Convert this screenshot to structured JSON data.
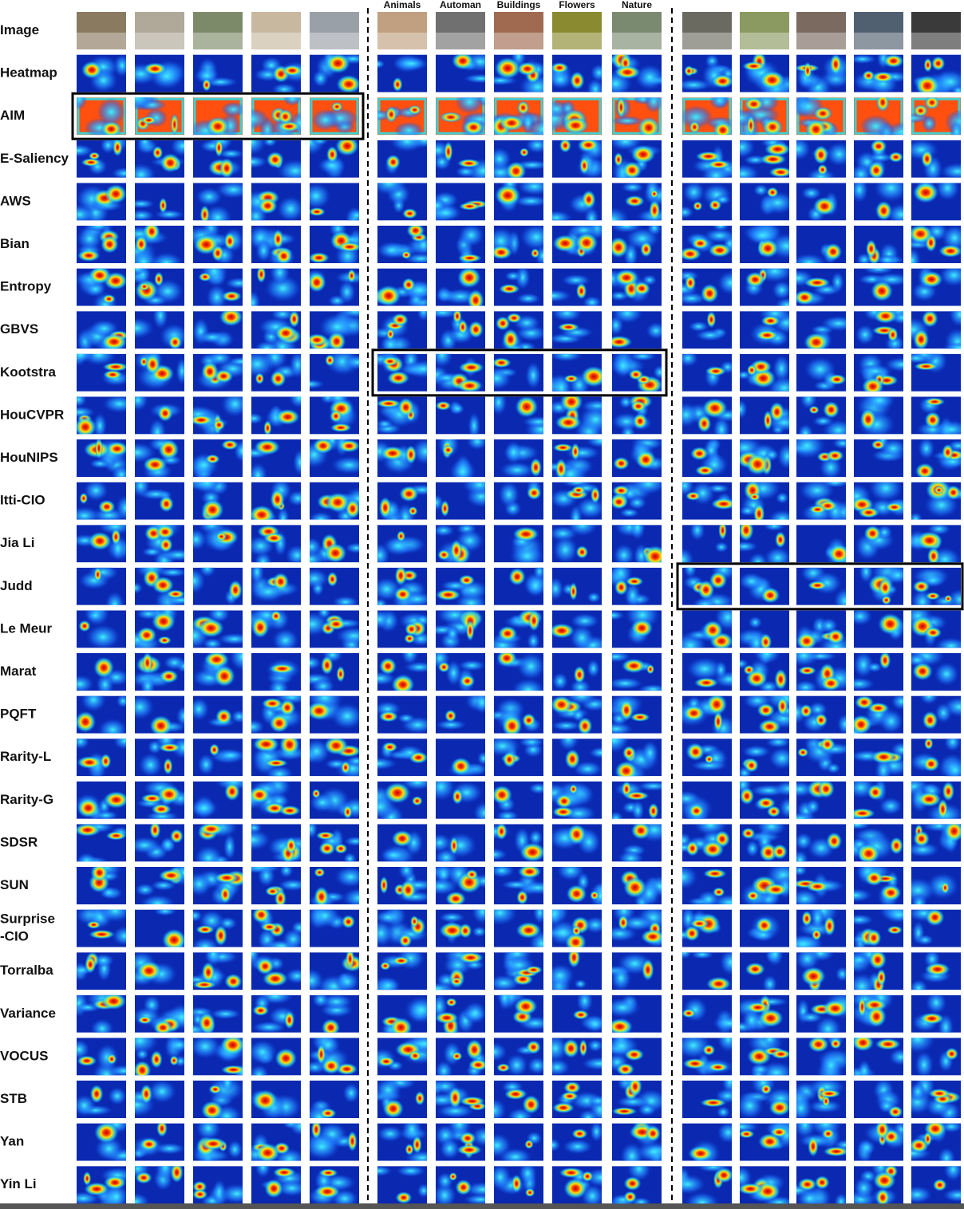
{
  "figure": {
    "columns": [
      "Animals",
      "Automan",
      "Buildings",
      "Flowers",
      "Nature"
    ],
    "rows": [
      "Image",
      "Heatmap",
      "AIM",
      "E-Saliency",
      "AWS",
      "Bian",
      "Entropy",
      "GBVS",
      "Kootstra",
      "HouCVPR",
      "HouNIPS",
      "Itti-CIO",
      "Jia Li",
      "Judd",
      "Le Meur",
      "Marat",
      "PQFT",
      "Rarity-L",
      "Rarity-G",
      "SDSR",
      "SUN",
      [
        "Surprise",
        "-CIO"
      ],
      "Torralba",
      "Variance",
      "VOCUS",
      "STB",
      "Yan",
      "Yin Li"
    ]
  }
}
